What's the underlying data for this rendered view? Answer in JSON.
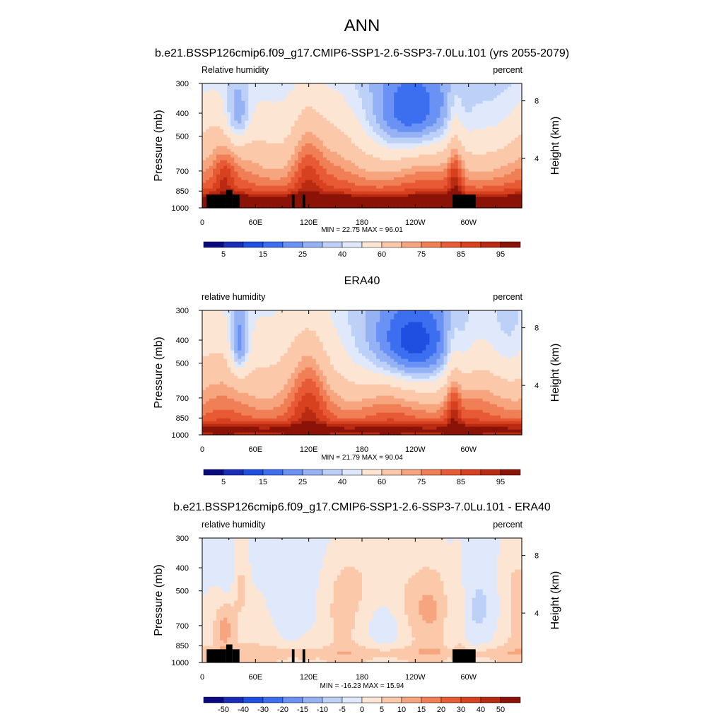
{
  "figure": {
    "title": "ANN"
  },
  "chart_data": [
    {
      "type": "contour",
      "title": "b.e21.BSSP126cmip6.f09_g17.CMIP6-SSP1-2.6-SSP3-7.0Lu.101 (yrs 2055-2079)",
      "left_label": "Relative humidity",
      "right_label": "percent",
      "ylabel": "Pressure (mb)",
      "y2label": "Height (km)",
      "yticks": [
        "300",
        "400",
        "500",
        "700",
        "850",
        "1000"
      ],
      "y2ticks": [
        "8",
        "4"
      ],
      "xticks": [
        "0",
        "60E",
        "120E",
        "180",
        "120W",
        "60W"
      ],
      "stats": "MIN =  22.75  MAX =  96.01",
      "colorbar": {
        "labels": [
          "5",
          "15",
          "25",
          "40",
          "60",
          "75",
          "85",
          "95"
        ]
      },
      "levels": [
        5,
        10,
        15,
        20,
        25,
        30,
        35,
        40,
        50,
        60,
        65,
        70,
        75,
        80,
        85,
        90,
        95
      ],
      "min": 22.75,
      "max": 96.01
    },
    {
      "type": "contour",
      "title": "ERA40",
      "left_label": "relative humidity",
      "right_label": "percent",
      "ylabel": "Pressure (mb)",
      "y2label": "Height (km)",
      "yticks": [
        "300",
        "400",
        "500",
        "700",
        "850",
        "1000"
      ],
      "y2ticks": [
        "8",
        "4"
      ],
      "xticks": [
        "0",
        "60E",
        "120E",
        "180",
        "120W",
        "60W"
      ],
      "stats": "MIN =  21.79  MAX =  90.04",
      "colorbar": {
        "labels": [
          "5",
          "15",
          "25",
          "40",
          "60",
          "75",
          "85",
          "95"
        ]
      },
      "levels": [
        5,
        10,
        15,
        20,
        25,
        30,
        35,
        40,
        50,
        60,
        65,
        70,
        75,
        80,
        85,
        90,
        95
      ],
      "min": 21.79,
      "max": 90.04
    },
    {
      "type": "contour",
      "title": "b.e21.BSSP126cmip6.f09_g17.CMIP6-SSP1-2.6-SSP3-7.0Lu.101 - ERA40",
      "left_label": "relative humidity",
      "right_label": "percent",
      "ylabel": "Pressure (mb)",
      "y2label": "Height (km)",
      "yticks": [
        "300",
        "400",
        "500",
        "700",
        "850",
        "1000"
      ],
      "y2ticks": [
        "8",
        "4"
      ],
      "xticks": [
        "0",
        "60E",
        "120E",
        "180",
        "120W",
        "60W"
      ],
      "stats": "MIN = -16.23  MAX =  15.94",
      "colorbar": {
        "labels": [
          "-50",
          "-40",
          "-30",
          "-20",
          "-15",
          "-10",
          "-5",
          "0",
          "5",
          "10",
          "15",
          "20",
          "30",
          "40",
          "50"
        ]
      },
      "levels": [
        -50,
        -40,
        -30,
        -20,
        -15,
        -10,
        -5,
        0,
        5,
        10,
        15,
        20,
        30,
        40,
        50
      ],
      "min": -16.23,
      "max": 15.94
    }
  ],
  "colors": {
    "palette": [
      "#0a0a80",
      "#1a2db8",
      "#1f4fe0",
      "#3c6ef0",
      "#6a92f5",
      "#95b2f5",
      "#bcd0f8",
      "#dfe9fb",
      "#fde5d4",
      "#fbc9aa",
      "#f6a57e",
      "#f07f56",
      "#e85a35",
      "#d8411f",
      "#b82a12",
      "#8a1206"
    ],
    "terrain": "#000000"
  }
}
